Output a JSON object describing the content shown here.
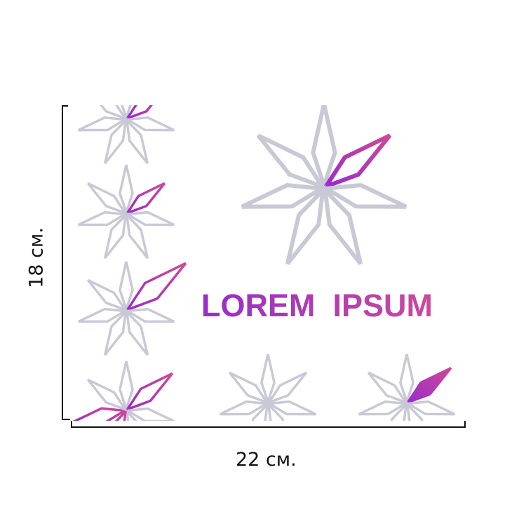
{
  "product": {
    "text": "LOREM  IPSUM",
    "star_color": "#c9c9d6",
    "accent_gradient": [
      "#9a2cc9",
      "#cc4a98"
    ]
  },
  "dimensions": {
    "width_label": "22 см.",
    "height_label": "18 см."
  }
}
